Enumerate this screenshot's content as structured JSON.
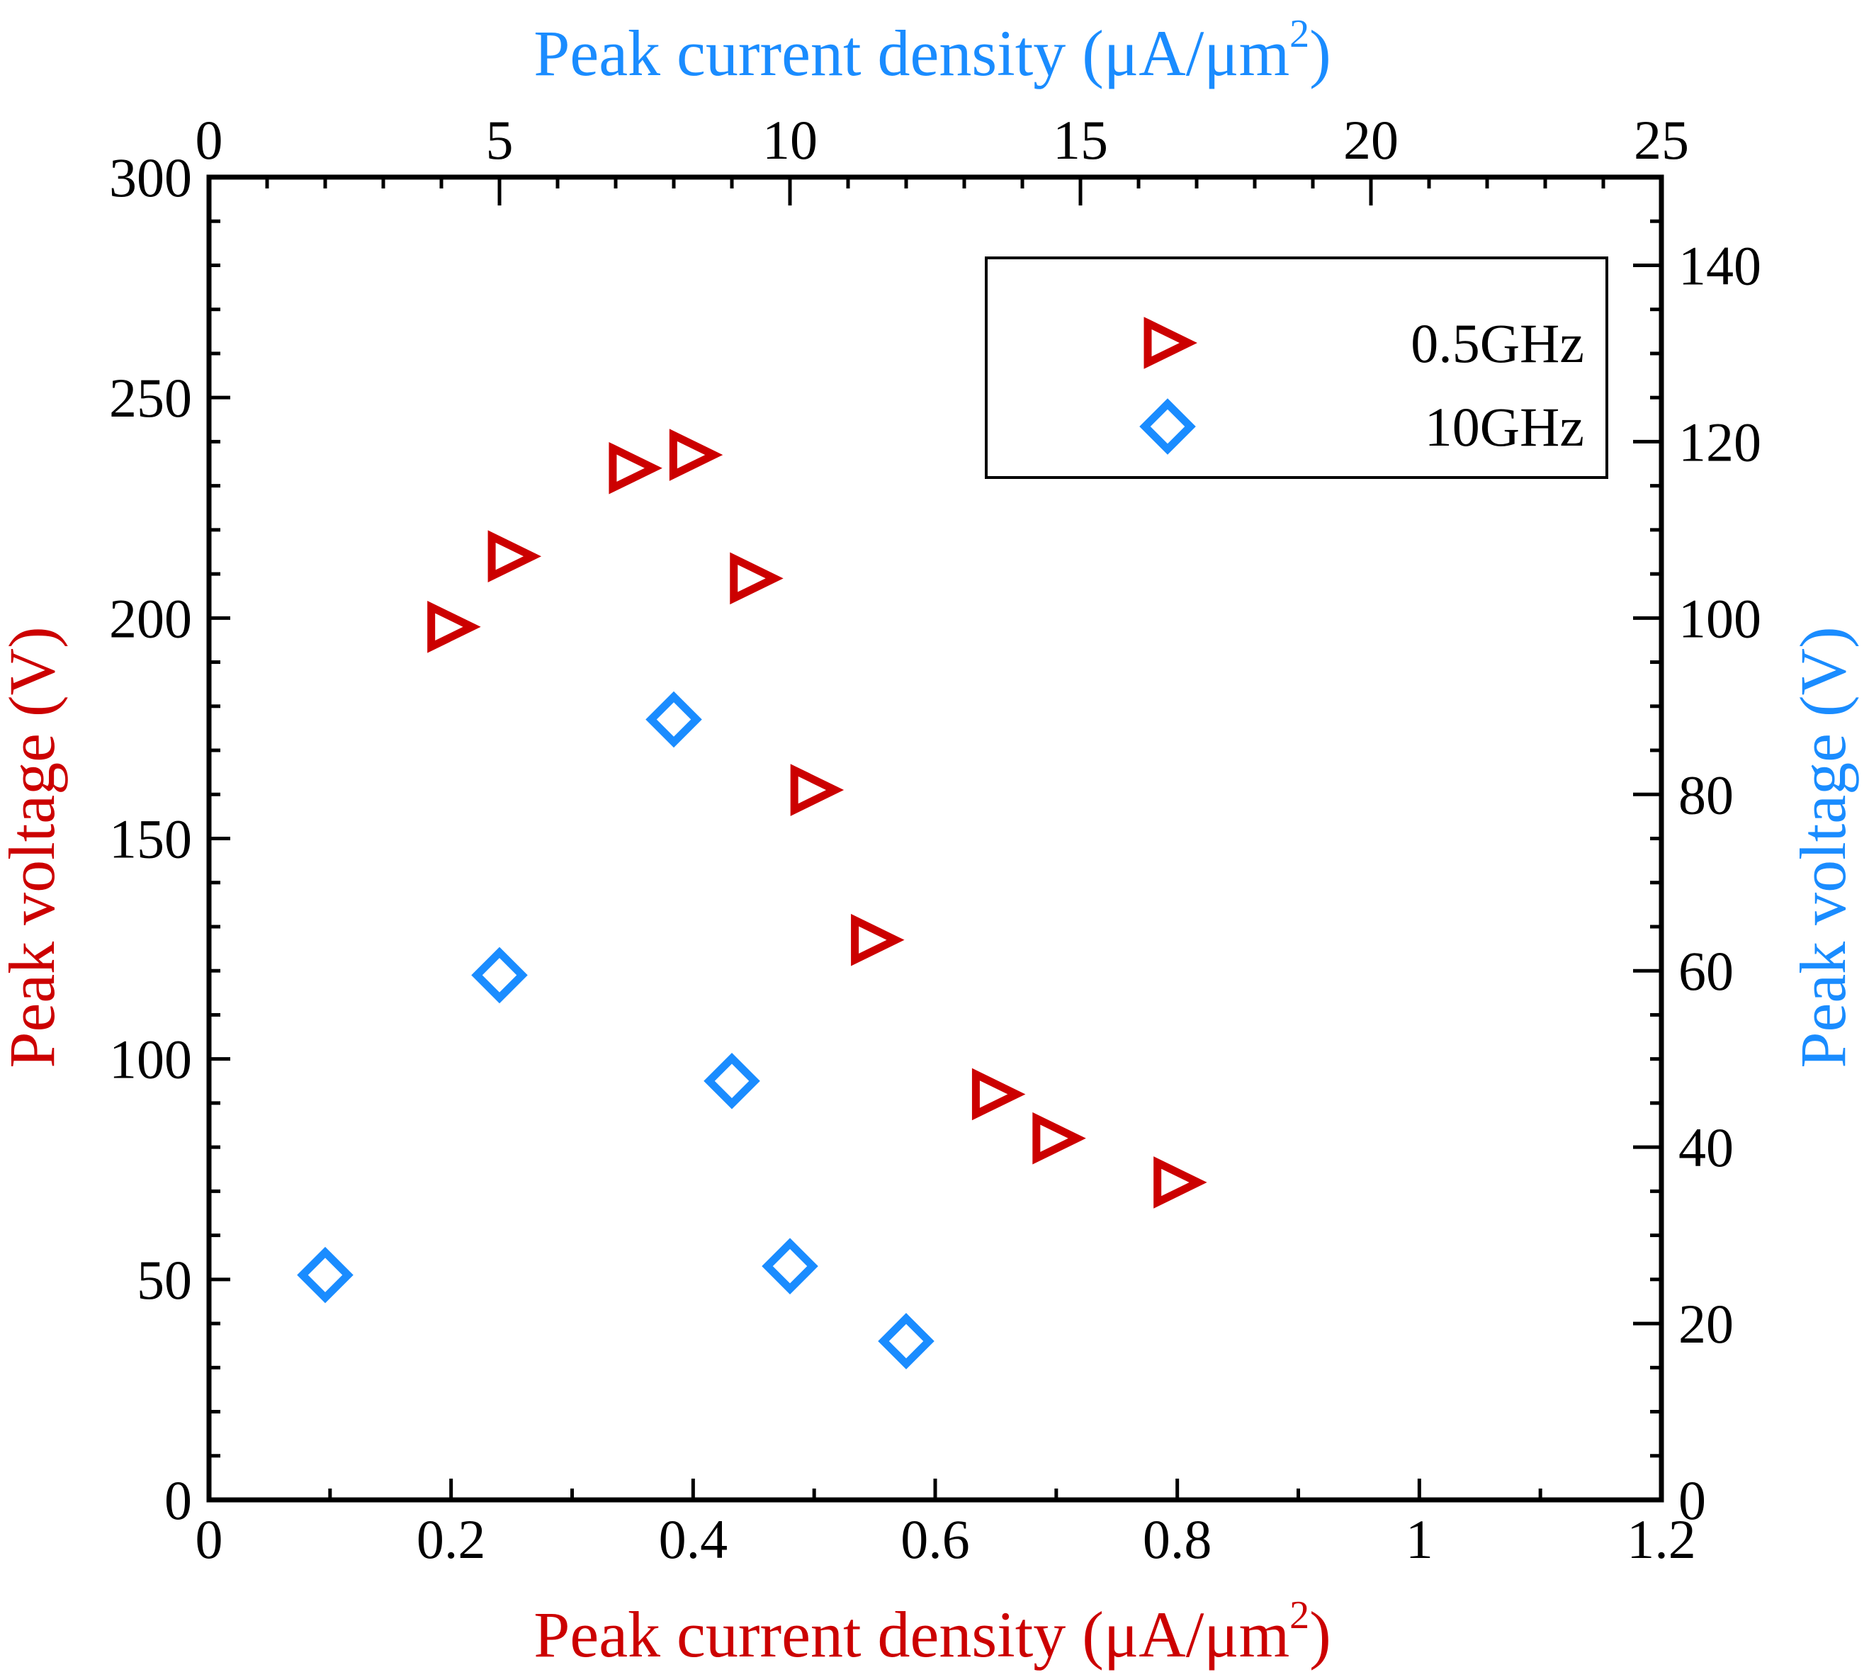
{
  "chart_data": {
    "type": "scatter",
    "bottom_axis": {
      "label": "Peak current density (μA/μm²)",
      "label_main": "Peak current density (μA/μm",
      "label_sup": "2",
      "label_end": ")",
      "color": "#cc0000",
      "range": [
        0,
        1.2
      ],
      "ticks": [
        "0",
        "0.2",
        "0.4",
        "0.6",
        "0.8",
        "1",
        "1.2"
      ]
    },
    "top_axis": {
      "label": "Peak current density (μA/μm²)",
      "label_main": "Peak current density (μA/μm",
      "label_sup": "2",
      "label_end": ")",
      "color": "#1a8cff",
      "range": [
        0,
        25
      ],
      "ticks": [
        "0",
        "5",
        "10",
        "15",
        "20",
        "25"
      ]
    },
    "left_axis": {
      "label": "Peak voltage (V)",
      "color": "#cc0000",
      "range": [
        0,
        300
      ],
      "ticks": [
        "0",
        "50",
        "100",
        "150",
        "200",
        "250",
        "300"
      ]
    },
    "right_axis": {
      "label": "Peak voltage (V)",
      "color": "#1a8cff",
      "range": [
        0,
        150
      ],
      "ticks": [
        "0",
        "20",
        "40",
        "60",
        "80",
        "100",
        "120",
        "140"
      ]
    },
    "legend_position": "top-right",
    "series": [
      {
        "name": "0.5GHz",
        "marker": "triangle-right",
        "color": "#cc0000",
        "axes": [
          "bottom",
          "left"
        ],
        "points": [
          {
            "x": 0.2,
            "y": 198
          },
          {
            "x": 0.25,
            "y": 214
          },
          {
            "x": 0.35,
            "y": 234
          },
          {
            "x": 0.4,
            "y": 237
          },
          {
            "x": 0.45,
            "y": 209
          },
          {
            "x": 0.5,
            "y": 161
          },
          {
            "x": 0.55,
            "y": 127
          },
          {
            "x": 0.65,
            "y": 92
          },
          {
            "x": 0.7,
            "y": 82
          },
          {
            "x": 0.8,
            "y": 72
          }
        ]
      },
      {
        "name": "10GHz",
        "marker": "diamond",
        "color": "#1a8cff",
        "axes": [
          "top",
          "right"
        ],
        "points": [
          {
            "x": 2.0,
            "y": 25.5
          },
          {
            "x": 5.0,
            "y": 59.5
          },
          {
            "x": 8.0,
            "y": 88.5
          },
          {
            "x": 9.0,
            "y": 47.5
          },
          {
            "x": 10.0,
            "y": 26.5
          },
          {
            "x": 12.0,
            "y": 18
          }
        ]
      }
    ]
  }
}
